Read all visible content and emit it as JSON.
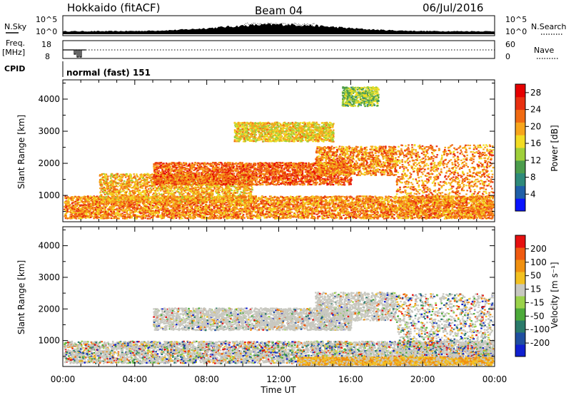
{
  "header": {
    "station": "Hokkaido (fitACF)",
    "beam": "Beam 04",
    "date": "06/Jul/2016"
  },
  "top_panels": {
    "nsky_label": "N.Sky",
    "nsearch_label": "N.Search",
    "noise_ticks": [
      "10^5",
      "10^0"
    ],
    "freq_label": "Freq.",
    "freq_unit": "[MHz]",
    "freq_ticks": [
      "18",
      "8"
    ],
    "nave_label": "Nave",
    "nave_ticks": [
      "60",
      "0"
    ],
    "cpid_label": "CPID",
    "cpid_value": "normal (fast) 151"
  },
  "chart_data": [
    {
      "type": "heatmap",
      "quantity": "Power",
      "ylabel": "Slant Range [km]",
      "xlabel": "Time UT",
      "x_ticks": [
        "00:00",
        "04:00",
        "08:00",
        "12:00",
        "16:00",
        "20:00",
        "00:00"
      ],
      "x_range_hours": [
        0,
        24
      ],
      "y_ticks": [
        1000,
        2000,
        3000,
        4000
      ],
      "y_range_km": [
        180,
        4600
      ],
      "colorbar": {
        "label": "Power [dB]",
        "ticks": [
          4,
          8,
          12,
          16,
          20,
          24,
          28
        ],
        "range": [
          0,
          30
        ],
        "colors": [
          "#0a14ff",
          "#1f5fa8",
          "#2e8a7a",
          "#4c9d4c",
          "#9fcf3a",
          "#f2dc24",
          "#f7a51c",
          "#f06a12",
          "#e83010",
          "#e60000"
        ]
      },
      "echo_regions": [
        {
          "t": [
            0.0,
            24.0
          ],
          "r": [
            300,
            1000
          ],
          "level": 26,
          "desc": "near-range band with gaps"
        },
        {
          "t": [
            2.0,
            10.5
          ],
          "r": [
            800,
            1700
          ],
          "level": 24
        },
        {
          "t": [
            5.0,
            16.0
          ],
          "r": [
            1350,
            2050
          ],
          "level": 28,
          "desc": "main rising band"
        },
        {
          "t": [
            14.0,
            18.5
          ],
          "r": [
            1650,
            2550
          ],
          "level": 26
        },
        {
          "t": [
            18.5,
            24.0
          ],
          "r": [
            300,
            2600
          ],
          "level": 26,
          "desc": "descending band after gap"
        },
        {
          "t": [
            9.5,
            15.0
          ],
          "r": [
            2700,
            3300
          ],
          "level": 22
        },
        {
          "t": [
            15.5,
            17.5
          ],
          "r": [
            3800,
            4400
          ],
          "level": 18
        }
      ]
    },
    {
      "type": "heatmap",
      "quantity": "Velocity",
      "ylabel": "Slant Range [km]",
      "xlabel": "Time UT",
      "x_ticks": [
        "00:00",
        "04:00",
        "08:00",
        "12:00",
        "16:00",
        "20:00",
        "00:00"
      ],
      "x_range_hours": [
        0,
        24
      ],
      "y_ticks": [
        1000,
        2000,
        3000,
        4000
      ],
      "y_range_km": [
        180,
        4600
      ],
      "colorbar": {
        "label": "Velocity [m s⁻¹]",
        "ticks": [
          200,
          100,
          50,
          15,
          -15,
          -50,
          -100,
          -200
        ],
        "colors": [
          "#1020d0",
          "#1f4fa0",
          "#2a7a6a",
          "#4caa3a",
          "#9ad24a",
          "#c8c8c0",
          "#f2c020",
          "#f09010",
          "#f05a10",
          "#e61010"
        ]
      },
      "dominant": "ground scatter (grey, |v| < 15)",
      "echo_regions": [
        {
          "t": [
            0.0,
            24.0
          ],
          "r": [
            300,
            1000
          ],
          "level": "mixed"
        },
        {
          "t": [
            5.0,
            16.0
          ],
          "r": [
            1350,
            2050
          ],
          "level": "grey"
        },
        {
          "t": [
            14.0,
            18.5
          ],
          "r": [
            1650,
            2550
          ],
          "level": "grey"
        },
        {
          "t": [
            18.5,
            24.0
          ],
          "r": [
            400,
            2500
          ],
          "level": "mixed"
        },
        {
          "t": [
            13.0,
            24.0
          ],
          "r": [
            200,
            500
          ],
          "level": "orange"
        }
      ]
    }
  ]
}
